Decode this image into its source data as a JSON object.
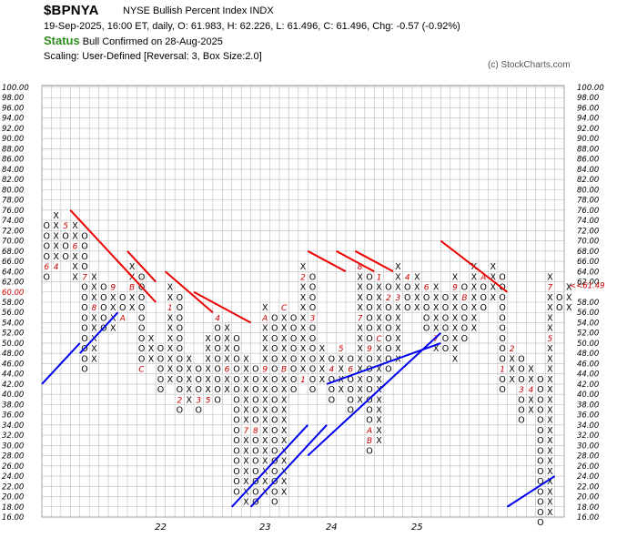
{
  "header": {
    "symbol": "$BPNYA",
    "name": "NYSE Bullish Percent Index  INDX",
    "quote": "19-Sep-2025, 16:00 ET, daily, O: 61.983, H: 62.226, L: 61.496, C: 61.496, Chg: -0.57 (-0.92%)",
    "status_label": "Status",
    "status_text": "Bull Confirmed on 28-Aug-2025",
    "scaling": "Scaling: User-Defined [Reversal: 3, Box Size:2.0]",
    "copyright": "(c) StockCharts.com"
  },
  "colors": {
    "x_marks": "#000000",
    "o_marks": "#000000",
    "month_marks": "#cc0000",
    "bullish_trendline": "#0000ee",
    "bearish_trendline": "#ee0000",
    "grid": "#bbbbbb",
    "price_marker": "#cc0000"
  },
  "chart_data": {
    "type": "point-and-figure",
    "box_size": 2.0,
    "reversal": 3,
    "ylim": [
      16,
      100
    ],
    "y_ticks": [
      "100.00",
      "98.00",
      "96.00",
      "94.00",
      "92.00",
      "90.00",
      "88.00",
      "86.00",
      "84.00",
      "82.00",
      "80.00",
      "78.00",
      "76.00",
      "74.00",
      "72.00",
      "70.00",
      "68.00",
      "66.00",
      "64.00",
      "62.00",
      "60.00",
      "58.00",
      "56.00",
      "54.00",
      "52.00",
      "50.00",
      "48.00",
      "46.00",
      "44.00",
      "42.00",
      "40.00",
      "38.00",
      "36.00",
      "34.00",
      "32.00",
      "30.00",
      "28.00",
      "26.00",
      "24.00",
      "22.00",
      "20.00",
      "18.00",
      "16.00"
    ],
    "left_marker": "60.00",
    "right_marker": "<<61.49",
    "last_value": 61.496,
    "x_labels": [
      {
        "label": "22",
        "col": 12.5
      },
      {
        "label": "23",
        "col": 23.5
      },
      {
        "label": "24",
        "col": 30.5
      },
      {
        "label": "25",
        "col": 39.5
      }
    ],
    "columns": [
      {
        "t": "O",
        "low": 64,
        "high": 74,
        "marks": {
          "66": "6"
        }
      },
      {
        "t": "X",
        "low": 66,
        "high": 76,
        "marks": {
          "66": "4"
        }
      },
      {
        "t": "O",
        "low": 68,
        "high": 74,
        "marks": {
          "74": "5"
        }
      },
      {
        "t": "X",
        "low": 64,
        "high": 74,
        "marks": {
          "70": "6"
        }
      },
      {
        "t": "O",
        "low": 46,
        "high": 72,
        "marks": {
          "64": "7"
        }
      },
      {
        "t": "X",
        "low": 48,
        "high": 64,
        "marks": {
          "58": "8"
        }
      },
      {
        "t": "O",
        "low": 54,
        "high": 62,
        "marks": {}
      },
      {
        "t": "X",
        "low": 54,
        "high": 62,
        "marks": {
          "62": "9"
        }
      },
      {
        "t": "O",
        "low": 56,
        "high": 60,
        "marks": {
          "56": "A"
        }
      },
      {
        "t": "X",
        "low": 58,
        "high": 66,
        "marks": {
          "62": "B"
        }
      },
      {
        "t": "O",
        "low": 46,
        "high": 64,
        "marks": {
          "46": "C"
        }
      },
      {
        "t": "X",
        "low": 48,
        "high": 52,
        "marks": {}
      },
      {
        "t": "O",
        "low": 42,
        "high": 50,
        "marks": {}
      },
      {
        "t": "X",
        "low": 44,
        "high": 62,
        "marks": {
          "58": "1"
        }
      },
      {
        "t": "O",
        "low": 38,
        "high": 60,
        "marks": {
          "40": "2"
        }
      },
      {
        "t": "X",
        "low": 40,
        "high": 48,
        "marks": {}
      },
      {
        "t": "O",
        "low": 38,
        "high": 46,
        "marks": {
          "40": "3"
        }
      },
      {
        "t": "X",
        "low": 40,
        "high": 52,
        "marks": {
          "40": "5"
        }
      },
      {
        "t": "O",
        "low": 40,
        "high": 56,
        "marks": {
          "56": "4"
        }
      },
      {
        "t": "X",
        "low": 42,
        "high": 54,
        "marks": {
          "46": "6"
        }
      },
      {
        "t": "O",
        "low": 22,
        "high": 52,
        "marks": {}
      },
      {
        "t": "X",
        "low": 20,
        "high": 48,
        "marks": {
          "34": "7"
        }
      },
      {
        "t": "O",
        "low": 20,
        "high": 46,
        "marks": {
          "34": "8"
        }
      },
      {
        "t": "X",
        "low": 22,
        "high": 58,
        "marks": {
          "46": "9",
          "56": "A"
        }
      },
      {
        "t": "O",
        "low": 20,
        "high": 56,
        "marks": {}
      },
      {
        "t": "X",
        "low": 22,
        "high": 58,
        "marks": {
          "46": "B",
          "58": "C"
        }
      },
      {
        "t": "O",
        "low": 42,
        "high": 56,
        "marks": {}
      },
      {
        "t": "X",
        "low": 44,
        "high": 66,
        "marks": {
          "44": "1",
          "64": "2"
        }
      },
      {
        "t": "O",
        "low": 42,
        "high": 64,
        "marks": {
          "56": "3"
        }
      },
      {
        "t": "X",
        "low": 44,
        "high": 50,
        "marks": {}
      },
      {
        "t": "O",
        "low": 40,
        "high": 48,
        "marks": {
          "46": "4"
        }
      },
      {
        "t": "X",
        "low": 42,
        "high": 50,
        "marks": {
          "50": "5"
        }
      },
      {
        "t": "O",
        "low": 38,
        "high": 48,
        "marks": {
          "46": "6"
        }
      },
      {
        "t": "X",
        "low": 40,
        "high": 66,
        "marks": {
          "56": "7",
          "66": "8"
        }
      },
      {
        "t": "O",
        "low": 30,
        "high": 64,
        "marks": {
          "50": "9",
          "34": "A",
          "32": "B"
        }
      },
      {
        "t": "X",
        "low": 32,
        "high": 64,
        "marks": {
          "64": "1",
          "52": "C"
        }
      },
      {
        "t": "O",
        "low": 46,
        "high": 62,
        "marks": {
          "60": "2"
        }
      },
      {
        "t": "X",
        "low": 48,
        "high": 66,
        "marks": {
          "60": "3"
        }
      },
      {
        "t": "O",
        "low": 58,
        "high": 64,
        "marks": {
          "64": "4"
        }
      },
      {
        "t": "X",
        "low": 58,
        "high": 64,
        "marks": {
          "56": "5"
        }
      },
      {
        "t": "O",
        "low": 54,
        "high": 62,
        "marks": {
          "62": "6"
        }
      },
      {
        "t": "X",
        "low": 50,
        "high": 62,
        "marks": {
          "52": "7"
        }
      },
      {
        "t": "O",
        "low": 50,
        "high": 60,
        "marks": {
          "64": "8"
        }
      },
      {
        "t": "X",
        "low": 48,
        "high": 64,
        "marks": {
          "62": "9"
        }
      },
      {
        "t": "O",
        "low": 52,
        "high": 62,
        "marks": {
          "60": "B"
        }
      },
      {
        "t": "X",
        "low": 54,
        "high": 66,
        "marks": {}
      },
      {
        "t": "O",
        "low": 58,
        "high": 64,
        "marks": {
          "64": "A"
        }
      },
      {
        "t": "X",
        "low": 60,
        "high": 66,
        "marks": {
          "68": "C"
        }
      },
      {
        "t": "O",
        "low": 42,
        "high": 64,
        "marks": {
          "46": "1"
        }
      },
      {
        "t": "X",
        "low": 44,
        "high": 50,
        "marks": {
          "50": "2"
        }
      },
      {
        "t": "O",
        "low": 36,
        "high": 48,
        "marks": {
          "42": "3"
        }
      },
      {
        "t": "X",
        "low": 38,
        "high": 46,
        "marks": {
          "42": "4"
        }
      },
      {
        "t": "O",
        "low": 16,
        "high": 44,
        "marks": {}
      },
      {
        "t": "X",
        "low": 18,
        "high": 64,
        "marks": {
          "52": "5",
          "62": "7"
        }
      },
      {
        "t": "O",
        "low": 58,
        "high": 60,
        "marks": {
          "62": "8"
        }
      },
      {
        "t": "X",
        "low": 58,
        "high": 62,
        "marks": {}
      }
    ],
    "trendlines": [
      {
        "color": "blue",
        "from": [
          0,
          42
        ],
        "to": [
          4,
          50
        ]
      },
      {
        "color": "blue",
        "from": [
          4,
          48
        ],
        "to": [
          8,
          56
        ]
      },
      {
        "color": "red",
        "from": [
          3,
          76
        ],
        "to": [
          12,
          58
        ]
      },
      {
        "color": "red",
        "from": [
          9,
          68
        ],
        "to": [
          12,
          62
        ]
      },
      {
        "color": "red",
        "from": [
          13,
          64
        ],
        "to": [
          18,
          56
        ]
      },
      {
        "color": "red",
        "from": [
          16,
          60
        ],
        "to": [
          22,
          54
        ]
      },
      {
        "color": "blue",
        "from": [
          20,
          18
        ],
        "to": [
          28,
          34
        ]
      },
      {
        "color": "blue",
        "from": [
          22,
          18
        ],
        "to": [
          30,
          34
        ]
      },
      {
        "color": "red",
        "from": [
          28,
          68
        ],
        "to": [
          32,
          64
        ]
      },
      {
        "color": "red",
        "from": [
          31,
          68
        ],
        "to": [
          35,
          64
        ]
      },
      {
        "color": "red",
        "from": [
          33,
          68
        ],
        "to": [
          37,
          64
        ]
      },
      {
        "color": "blue",
        "from": [
          28,
          28
        ],
        "to": [
          42,
          52
        ]
      },
      {
        "color": "red",
        "from": [
          42,
          70
        ],
        "to": [
          49,
          60
        ]
      },
      {
        "color": "blue",
        "from": [
          30,
          42
        ],
        "to": [
          42,
          50
        ]
      },
      {
        "color": "blue",
        "from": [
          49,
          18
        ],
        "to": [
          54,
          24
        ]
      }
    ]
  }
}
